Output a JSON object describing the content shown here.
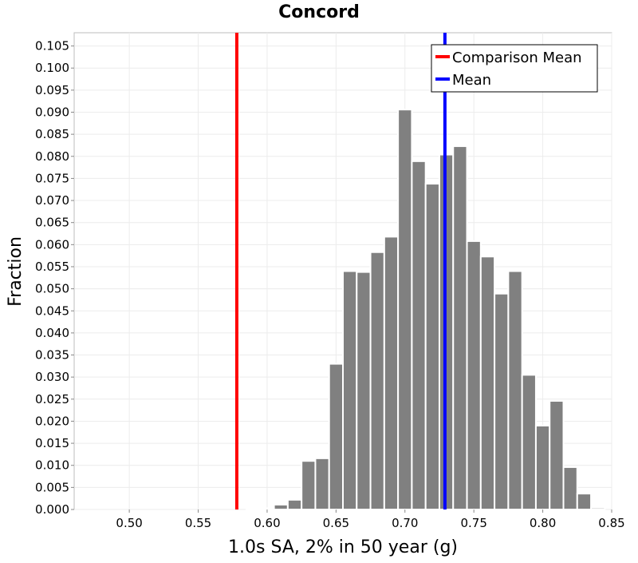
{
  "chart_data": {
    "type": "bar",
    "title": "Concord",
    "xlabel": "1.0s SA, 2% in 50 year (g)",
    "ylabel": "Fraction",
    "xlim": [
      0.46,
      0.85
    ],
    "ylim": [
      0.0,
      0.108
    ],
    "xticks": [
      "0.50",
      "0.55",
      "0.60",
      "0.65",
      "0.70",
      "0.75",
      "0.80",
      "0.85"
    ],
    "yticks": [
      "0.000",
      "0.005",
      "0.010",
      "0.015",
      "0.020",
      "0.025",
      "0.030",
      "0.035",
      "0.040",
      "0.045",
      "0.050",
      "0.055",
      "0.060",
      "0.065",
      "0.070",
      "0.075",
      "0.080",
      "0.085",
      "0.090",
      "0.095",
      "0.100",
      "0.105"
    ],
    "grid": true,
    "bar_color": "#808080",
    "bins": [
      {
        "x": 0.59,
        "value": 0.0002
      },
      {
        "x": 0.6,
        "value": 0.0003
      },
      {
        "x": 0.61,
        "value": 0.0011
      },
      {
        "x": 0.62,
        "value": 0.0022
      },
      {
        "x": 0.63,
        "value": 0.011
      },
      {
        "x": 0.64,
        "value": 0.0116
      },
      {
        "x": 0.65,
        "value": 0.033
      },
      {
        "x": 0.66,
        "value": 0.054
      },
      {
        "x": 0.67,
        "value": 0.0538
      },
      {
        "x": 0.68,
        "value": 0.0583
      },
      {
        "x": 0.69,
        "value": 0.0618
      },
      {
        "x": 0.7,
        "value": 0.0906
      },
      {
        "x": 0.71,
        "value": 0.0789
      },
      {
        "x": 0.72,
        "value": 0.0738
      },
      {
        "x": 0.73,
        "value": 0.0804
      },
      {
        "x": 0.74,
        "value": 0.0823
      },
      {
        "x": 0.75,
        "value": 0.0608
      },
      {
        "x": 0.76,
        "value": 0.0573
      },
      {
        "x": 0.77,
        "value": 0.0489
      },
      {
        "x": 0.78,
        "value": 0.054
      },
      {
        "x": 0.79,
        "value": 0.0305
      },
      {
        "x": 0.8,
        "value": 0.019
      },
      {
        "x": 0.81,
        "value": 0.0246
      },
      {
        "x": 0.82,
        "value": 0.0096
      },
      {
        "x": 0.83,
        "value": 0.0036
      },
      {
        "x": 0.84,
        "value": 0.0004
      }
    ],
    "bin_width": 0.01,
    "vlines": [
      {
        "name": "Comparison Mean",
        "x": 0.578,
        "color": "#ff0000"
      },
      {
        "name": "Mean",
        "x": 0.729,
        "color": "#0000ff"
      }
    ],
    "legend": {
      "position": "top-right",
      "entries": [
        {
          "label": "Comparison Mean",
          "color": "#ff0000"
        },
        {
          "label": "Mean",
          "color": "#0000ff"
        }
      ]
    }
  }
}
